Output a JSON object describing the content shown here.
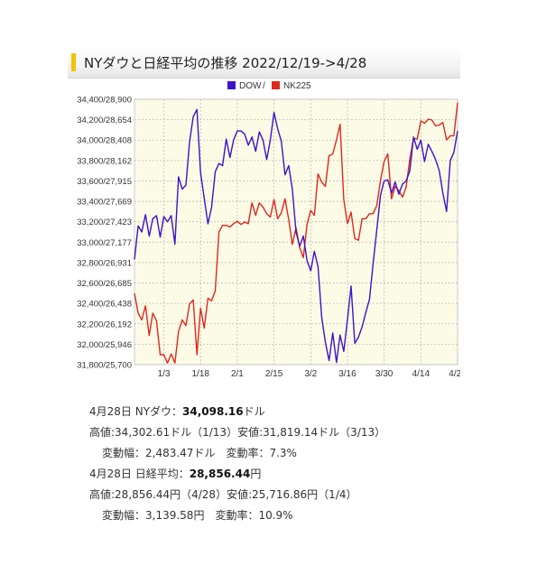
{
  "title": "NYダウと日経平均の推移 2022/12/19->4/28",
  "colors": {
    "dow": "#3b14c8",
    "nk": "#e0281e",
    "plot_bg": "#fcfbe6",
    "grid": "#bdbdbd"
  },
  "chart_data": {
    "type": "line",
    "legend_position": "top-center",
    "legend_separator": "/",
    "grid": true,
    "y_tick_labels": [
      "34,400/28,900",
      "34,200/28,654",
      "34,000/28,408",
      "33,800/28,162",
      "33,600/27,915",
      "33,400/27,669",
      "33,200/27,423",
      "33,000/27,177",
      "32,800/26,931",
      "32,600/26,685",
      "32,400/26,438",
      "32,200/26,192",
      "32,000/25,946",
      "31,800/25,700"
    ],
    "ylim": [
      31800,
      34400
    ],
    "ylim_right_scale": [
      25700,
      28900
    ],
    "x_tick_labels": [
      "1/3",
      "1/18",
      "2/1",
      "2/15",
      "3/2",
      "3/16",
      "3/30",
      "4/14",
      "4/28"
    ],
    "x_tick_index": [
      8,
      18,
      28,
      38,
      48,
      58,
      68,
      78,
      88
    ],
    "series": [
      {
        "name": "DOW",
        "axis": "DOW",
        "values": [
          32830,
          33160,
          33100,
          33270,
          33060,
          33230,
          33260,
          33050,
          33250,
          33200,
          33260,
          32980,
          33640,
          33520,
          33560,
          33980,
          34230,
          34300,
          33680,
          33430,
          33180,
          33340,
          33690,
          33770,
          33750,
          34010,
          33830,
          34000,
          34090,
          34090,
          34060,
          33950,
          34030,
          33890,
          34080,
          34000,
          33810,
          34000,
          34270,
          34110,
          33990,
          33660,
          33750,
          33520,
          33100,
          32960,
          33060,
          32820,
          32720,
          32910,
          32760,
          32260,
          32020,
          31840,
          32110,
          31820,
          32090,
          31930,
          32240,
          32570,
          32010,
          32070,
          32170,
          32310,
          32440,
          32790,
          33120,
          33460,
          33600,
          33610,
          33480,
          33590,
          33470,
          33570,
          33600,
          33700,
          34030,
          33910,
          34000,
          33790,
          33960,
          33890,
          33810,
          33700,
          33480,
          33300,
          33800,
          33880,
          34090
        ]
      },
      {
        "name": "NK225",
        "axis": "NK225",
        "values": [
          26560,
          26320,
          26240,
          26410,
          26050,
          26320,
          26230,
          25820,
          25820,
          25720,
          25830,
          25720,
          26100,
          26240,
          26170,
          26430,
          26480,
          25820,
          26380,
          26140,
          26500,
          26470,
          26590,
          27300,
          27380,
          27380,
          27360,
          27400,
          27430,
          27390,
          27420,
          27400,
          27650,
          27500,
          27650,
          27600,
          27520,
          27480,
          27690,
          27460,
          27530,
          27700,
          27450,
          27150,
          27350,
          27110,
          26990,
          27390,
          27560,
          27500,
          28000,
          27900,
          27850,
          28220,
          28240,
          28410,
          28600,
          27690,
          27400,
          27540,
          27220,
          27200,
          27460,
          27460,
          27520,
          27520,
          27620,
          27920,
          28150,
          28240,
          27700,
          27850,
          27800,
          27720,
          27840,
          28180,
          28430,
          28420,
          28640,
          28610,
          28660,
          28650,
          28580,
          28590,
          28620,
          28410,
          28460,
          28460,
          28860
        ]
      }
    ]
  },
  "stats": [
    {
      "line1_prefix": "4月28日 NYダウ：",
      "line1_value": "34,098.16",
      "line1_unit": "ドル",
      "line2": "高値:34,302.61ドル（1/13）安値:31,819.14ドル（3/13）",
      "line3": "変動幅：2,483.47ドル　変動率：7.3%"
    },
    {
      "line1_prefix": "4月28日 日経平均：",
      "line1_value": "28,856.44",
      "line1_unit": "円",
      "line2": "高値:28,856.44円（4/28）安値:25,716.86円（1/4）",
      "line3": "変動幅：3,139.58円　変動率：10.9%"
    }
  ]
}
